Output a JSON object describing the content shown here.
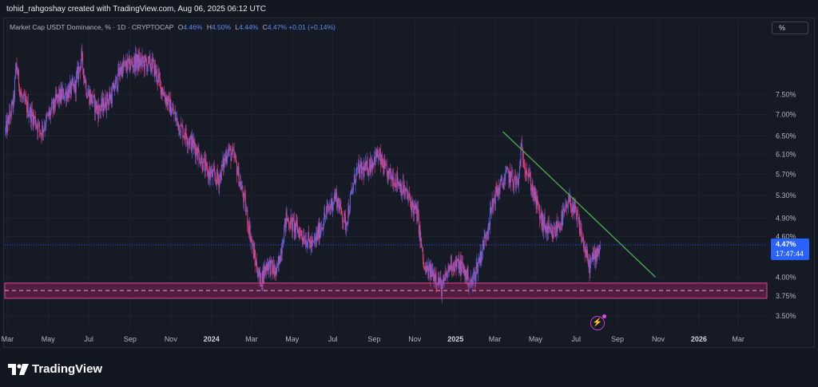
{
  "header": {
    "attribution": "tohid_rahgoshay created with TradingView.com, Aug 06, 2025 06:12 UTC"
  },
  "legend": {
    "title": "Market Cap USDT Dominance, % · 1D · CRYPTOCAP",
    "open_label": "O",
    "open": "4.46%",
    "high_label": "H",
    "high": "4.50%",
    "low_label": "L",
    "low": "4.44%",
    "close_label": "C",
    "close": "4.47%",
    "change": "+0.01 (+0.14%)"
  },
  "scale_button": "%",
  "price_badge": {
    "value": "4.47%",
    "countdown": "17:47:44"
  },
  "brand": {
    "name": "TradingView"
  },
  "colors": {
    "background": "#161a25",
    "bull_candle": "#5b6cf0",
    "bear_candle": "#f23e7a",
    "trendline": "#4caf50",
    "support_zone": "#5c2045",
    "support_border": "#e0468e",
    "last_price": "#2962ff"
  },
  "chart_data": {
    "type": "candlestick",
    "title": "Market Cap USDT Dominance, %",
    "interval": "1D",
    "source": "CRYPTOCAP",
    "log_scale": true,
    "x_tick_labels": [
      "Mar",
      "May",
      "Jul",
      "Sep",
      "Nov",
      "2024",
      "Mar",
      "May",
      "Jul",
      "Sep",
      "Nov",
      "2025",
      "Mar",
      "May",
      "Jul",
      "Sep",
      "Nov",
      "2026",
      "Mar"
    ],
    "x_tick_dates": [
      "2023-03-01",
      "2023-05-01",
      "2023-07-01",
      "2023-09-01",
      "2023-11-01",
      "2024-01-01",
      "2024-03-01",
      "2024-05-01",
      "2024-07-01",
      "2024-09-01",
      "2024-11-01",
      "2025-01-01",
      "2025-03-01",
      "2025-05-01",
      "2025-07-01",
      "2025-09-01",
      "2025-11-01",
      "2026-01-01",
      "2026-03-01"
    ],
    "y_tick_labels": [
      "7.50%",
      "7.00%",
      "6.50%",
      "6.10%",
      "5.70%",
      "5.30%",
      "4.90%",
      "4.60%",
      "4.00%",
      "3.75%",
      "3.50%"
    ],
    "y_tick_values": [
      7.5,
      7.0,
      6.5,
      6.1,
      5.7,
      5.3,
      4.9,
      4.6,
      4.0,
      3.75,
      3.5
    ],
    "ylim": [
      3.35,
      9.2
    ],
    "xlim": [
      "2023-02-25",
      "2026-04-13"
    ],
    "price_path": [
      {
        "date": "2023-02-26",
        "value": 6.6
      },
      {
        "date": "2023-03-10",
        "value": 7.3
      },
      {
        "date": "2023-03-14",
        "value": 8.3
      },
      {
        "date": "2023-03-22",
        "value": 7.4
      },
      {
        "date": "2023-04-10",
        "value": 6.9
      },
      {
        "date": "2023-04-20",
        "value": 6.6
      },
      {
        "date": "2023-05-15",
        "value": 7.4
      },
      {
        "date": "2023-06-10",
        "value": 7.7
      },
      {
        "date": "2023-06-20",
        "value": 8.5
      },
      {
        "date": "2023-06-28",
        "value": 7.6
      },
      {
        "date": "2023-07-15",
        "value": 7.1
      },
      {
        "date": "2023-08-05",
        "value": 7.5
      },
      {
        "date": "2023-08-18",
        "value": 8.2
      },
      {
        "date": "2023-09-10",
        "value": 8.4
      },
      {
        "date": "2023-10-05",
        "value": 8.3
      },
      {
        "date": "2023-10-22",
        "value": 7.5
      },
      {
        "date": "2023-11-15",
        "value": 6.7
      },
      {
        "date": "2023-12-10",
        "value": 6.2
      },
      {
        "date": "2023-12-25",
        "value": 5.75
      },
      {
        "date": "2024-01-12",
        "value": 5.6
      },
      {
        "date": "2024-01-25",
        "value": 6.2
      },
      {
        "date": "2024-02-05",
        "value": 6.0
      },
      {
        "date": "2024-02-20",
        "value": 5.15
      },
      {
        "date": "2024-03-05",
        "value": 4.3
      },
      {
        "date": "2024-03-14",
        "value": 3.95
      },
      {
        "date": "2024-03-25",
        "value": 4.2
      },
      {
        "date": "2024-04-08",
        "value": 4.05
      },
      {
        "date": "2024-04-22",
        "value": 4.9
      },
      {
        "date": "2024-05-10",
        "value": 4.7
      },
      {
        "date": "2024-06-01",
        "value": 4.45
      },
      {
        "date": "2024-06-20",
        "value": 4.95
      },
      {
        "date": "2024-07-05",
        "value": 5.3
      },
      {
        "date": "2024-07-20",
        "value": 4.8
      },
      {
        "date": "2024-08-05",
        "value": 5.75
      },
      {
        "date": "2024-08-20",
        "value": 5.8
      },
      {
        "date": "2024-09-06",
        "value": 6.1
      },
      {
        "date": "2024-09-20",
        "value": 5.7
      },
      {
        "date": "2024-10-05",
        "value": 5.6
      },
      {
        "date": "2024-10-20",
        "value": 5.3
      },
      {
        "date": "2024-11-05",
        "value": 4.95
      },
      {
        "date": "2024-11-15",
        "value": 4.1
      },
      {
        "date": "2024-12-01",
        "value": 4.05
      },
      {
        "date": "2024-12-12",
        "value": 3.85
      },
      {
        "date": "2024-12-25",
        "value": 4.2
      },
      {
        "date": "2025-01-10",
        "value": 4.15
      },
      {
        "date": "2025-01-25",
        "value": 3.9
      },
      {
        "date": "2025-02-10",
        "value": 4.4
      },
      {
        "date": "2025-03-01",
        "value": 5.3
      },
      {
        "date": "2025-03-20",
        "value": 5.7
      },
      {
        "date": "2025-04-05",
        "value": 5.5
      },
      {
        "date": "2025-04-09",
        "value": 6.2
      },
      {
        "date": "2025-04-20",
        "value": 5.7
      },
      {
        "date": "2025-05-10",
        "value": 4.85
      },
      {
        "date": "2025-05-25",
        "value": 4.6
      },
      {
        "date": "2025-06-10",
        "value": 4.9
      },
      {
        "date": "2025-06-22",
        "value": 5.2
      },
      {
        "date": "2025-07-05",
        "value": 4.8
      },
      {
        "date": "2025-07-20",
        "value": 4.15
      },
      {
        "date": "2025-08-06",
        "value": 4.47
      }
    ],
    "trendline": [
      {
        "date": "2025-03-13",
        "value": 6.6
      },
      {
        "date": "2025-10-28",
        "value": 4.0
      }
    ],
    "support_zone": [
      3.72,
      3.92
    ],
    "support_mid": 3.82,
    "last_price": 4.47,
    "last_date": "2025-08-06",
    "grid": true
  }
}
